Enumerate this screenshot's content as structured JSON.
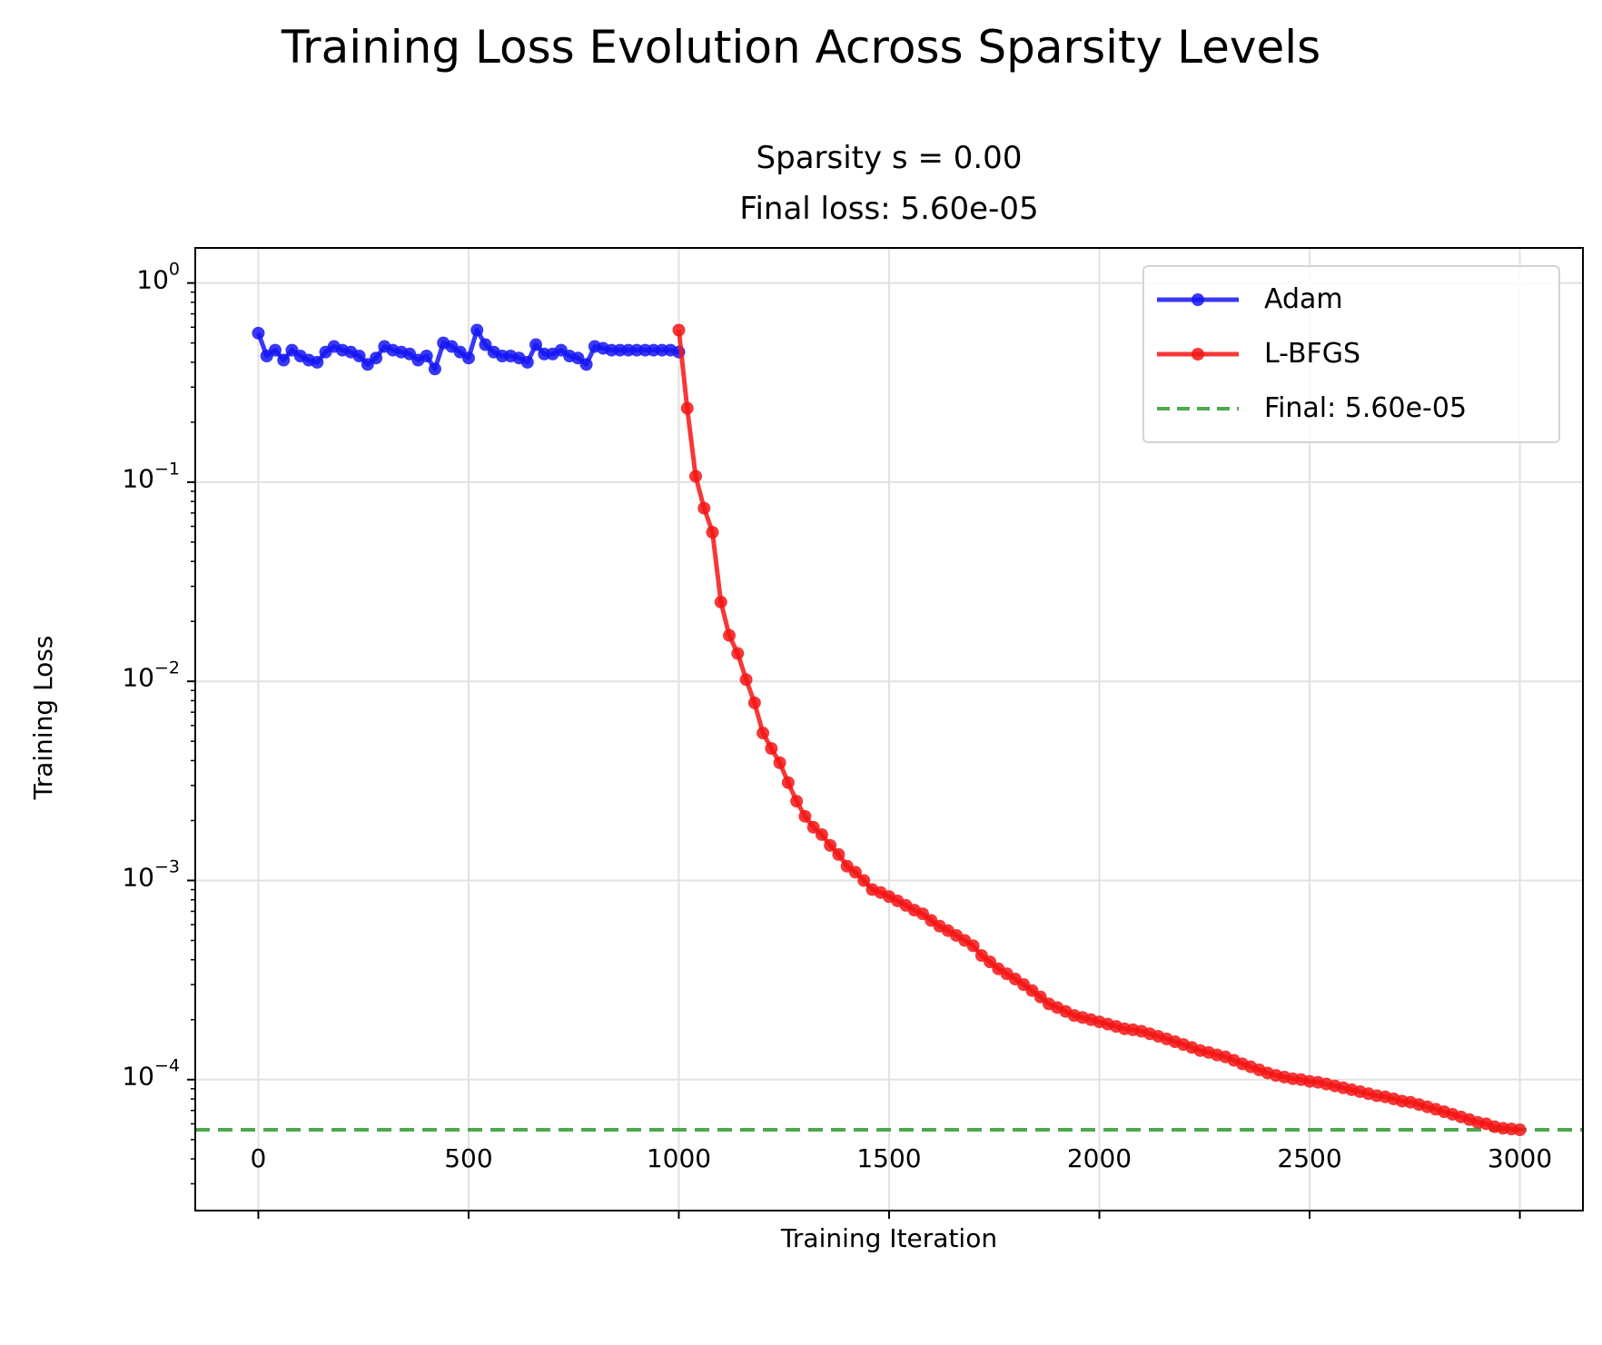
{
  "figure": {
    "suptitle": "Training Loss Evolution Across Sparsity Levels",
    "subtitle_line1": "Sparsity s = 0.00",
    "subtitle_line2": "Final loss: 5.60e-05"
  },
  "chart_data": {
    "type": "line",
    "title": "Sparsity s = 0.00\nFinal loss: 5.60e-05",
    "xlabel": "Training Iteration",
    "ylabel": "Training Loss",
    "yscale": "log",
    "xlim": [
      -150,
      3150
    ],
    "ylim": [
      2.2e-05,
      1.5
    ],
    "grid": true,
    "legend_placement": "upper right",
    "x_ticks": [
      {
        "value": 0,
        "label": "0"
      },
      {
        "value": 500,
        "label": "500"
      },
      {
        "value": 1000,
        "label": "1000"
      },
      {
        "value": 1500,
        "label": "1500"
      },
      {
        "value": 2000,
        "label": "2000"
      },
      {
        "value": 2500,
        "label": "2500"
      },
      {
        "value": 3000,
        "label": "3000"
      }
    ],
    "y_ticks": [
      {
        "value": 1,
        "base": "10",
        "exp": "0"
      },
      {
        "value": 0.1,
        "base": "10",
        "exp": "−1"
      },
      {
        "value": 0.01,
        "base": "10",
        "exp": "−2"
      },
      {
        "value": 0.001,
        "base": "10",
        "exp": "−3"
      },
      {
        "value": 0.0001,
        "base": "10",
        "exp": "−4"
      }
    ],
    "series": [
      {
        "name": "Adam",
        "color": "#1515f5",
        "marker": "circle",
        "x": [
          0,
          20,
          40,
          60,
          80,
          100,
          120,
          140,
          160,
          180,
          200,
          220,
          240,
          260,
          280,
          300,
          320,
          340,
          360,
          380,
          400,
          420,
          440,
          460,
          480,
          500,
          520,
          540,
          560,
          580,
          600,
          620,
          640,
          660,
          680,
          700,
          720,
          740,
          760,
          780,
          800,
          820,
          840,
          860,
          880,
          900,
          920,
          940,
          960,
          980,
          1000
        ],
        "y": [
          0.56,
          0.43,
          0.46,
          0.41,
          0.46,
          0.43,
          0.41,
          0.4,
          0.45,
          0.48,
          0.46,
          0.45,
          0.43,
          0.39,
          0.42,
          0.48,
          0.46,
          0.45,
          0.44,
          0.41,
          0.43,
          0.37,
          0.5,
          0.48,
          0.45,
          0.42,
          0.58,
          0.49,
          0.45,
          0.43,
          0.43,
          0.42,
          0.4,
          0.49,
          0.44,
          0.44,
          0.46,
          0.43,
          0.42,
          0.39,
          0.48,
          0.47,
          0.46,
          0.46,
          0.46,
          0.46,
          0.46,
          0.46,
          0.46,
          0.46,
          0.45
        ]
      },
      {
        "name": "L-BFGS",
        "color": "#f51515",
        "marker": "circle",
        "x": [
          1000,
          1020,
          1040,
          1060,
          1080,
          1100,
          1120,
          1140,
          1160,
          1180,
          1200,
          1220,
          1240,
          1260,
          1280,
          1300,
          1320,
          1340,
          1360,
          1380,
          1400,
          1420,
          1440,
          1460,
          1480,
          1500,
          1520,
          1540,
          1560,
          1580,
          1600,
          1620,
          1640,
          1660,
          1680,
          1700,
          1720,
          1740,
          1760,
          1780,
          1800,
          1820,
          1840,
          1860,
          1880,
          1900,
          1920,
          1940,
          1960,
          1980,
          2000,
          2020,
          2040,
          2060,
          2080,
          2100,
          2120,
          2140,
          2160,
          2180,
          2200,
          2220,
          2240,
          2260,
          2280,
          2300,
          2320,
          2340,
          2360,
          2380,
          2400,
          2420,
          2440,
          2460,
          2480,
          2500,
          2520,
          2540,
          2560,
          2580,
          2600,
          2620,
          2640,
          2660,
          2680,
          2700,
          2720,
          2740,
          2760,
          2780,
          2800,
          2820,
          2840,
          2860,
          2880,
          2900,
          2920,
          2940,
          2960,
          2980,
          3000
        ],
        "y": [
          0.58,
          0.235,
          0.107,
          0.074,
          0.056,
          0.025,
          0.017,
          0.0138,
          0.0102,
          0.0078,
          0.0055,
          0.0046,
          0.0039,
          0.0031,
          0.0025,
          0.0021,
          0.00185,
          0.0017,
          0.0015,
          0.00135,
          0.00118,
          0.0011,
          0.001,
          0.0009,
          0.00087,
          0.00083,
          0.00079,
          0.00075,
          0.00071,
          0.00068,
          0.00063,
          0.00059,
          0.00056,
          0.00053,
          0.0005,
          0.00047,
          0.00042,
          0.00039,
          0.00036,
          0.00034,
          0.00032,
          0.0003,
          0.00028,
          0.00026,
          0.00024,
          0.00023,
          0.00022,
          0.00021,
          0.000205,
          0.0002,
          0.000195,
          0.00019,
          0.000185,
          0.00018,
          0.000178,
          0.000175,
          0.00017,
          0.000165,
          0.00016,
          0.000155,
          0.00015,
          0.000145,
          0.00014,
          0.000137,
          0.000133,
          0.00013,
          0.000125,
          0.00012,
          0.000116,
          0.000112,
          0.000108,
          0.000105,
          0.000103,
          0.000101,
          0.0001,
          9.8e-05,
          9.7e-05,
          9.5e-05,
          9.3e-05,
          9.1e-05,
          8.9e-05,
          8.7e-05,
          8.5e-05,
          8.3e-05,
          8.2e-05,
          8e-05,
          7.8e-05,
          7.7e-05,
          7.5e-05,
          7.3e-05,
          7.1e-05,
          6.9e-05,
          6.7e-05,
          6.5e-05,
          6.3e-05,
          6.1e-05,
          6e-05,
          5.8e-05,
          5.7e-05,
          5.65e-05,
          5.6e-05
        ]
      }
    ],
    "reference_lines": [
      {
        "name": "Final: 5.60e-05",
        "y": 5.6e-05,
        "color": "#2e9a2e",
        "style": "dashed"
      }
    ]
  }
}
